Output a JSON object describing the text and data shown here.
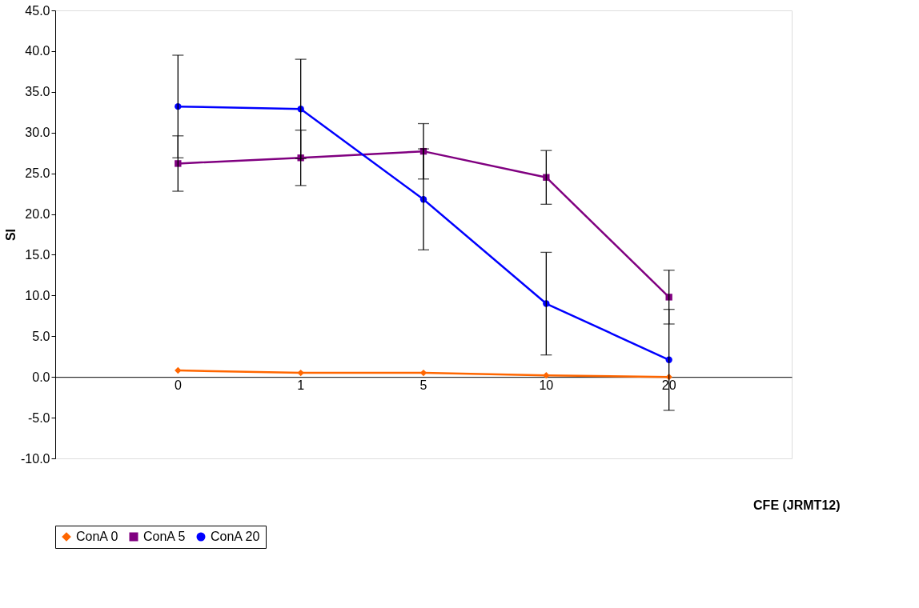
{
  "chart_data": {
    "type": "line",
    "xlabel": "CFE (JRMT12)",
    "ylabel": "SI",
    "categories": [
      "0",
      "1",
      "5",
      "10",
      "20"
    ],
    "series": [
      {
        "name": "ConA 0",
        "color": "#ff6600",
        "marker": "diamond",
        "values": [
          0.8,
          0.5,
          0.5,
          0.2,
          0.0
        ]
      },
      {
        "name": "ConA 5",
        "color": "#800080",
        "marker": "square",
        "values": [
          26.2,
          26.9,
          27.7,
          24.5,
          9.8
        ],
        "errors": [
          3.4,
          3.4,
          3.4,
          3.3,
          3.3
        ]
      },
      {
        "name": "ConA 20",
        "color": "#0000ff",
        "marker": "circle",
        "values": [
          33.2,
          32.9,
          21.8,
          9.0,
          2.1
        ],
        "errors": [
          6.3,
          6.1,
          6.2,
          6.3,
          6.2
        ]
      }
    ],
    "ylim": [
      -10,
      45
    ],
    "yticks": [
      {
        "value": -10,
        "label": "-10.0"
      },
      {
        "value": -5,
        "label": "-5.0"
      },
      {
        "value": 0,
        "label": "0.0"
      },
      {
        "value": 5,
        "label": "5.0"
      },
      {
        "value": 10,
        "label": "10.0"
      },
      {
        "value": 15,
        "label": "15.0"
      },
      {
        "value": 20,
        "label": "20.0"
      },
      {
        "value": 25,
        "label": "25.0"
      },
      {
        "value": 30,
        "label": "30.0"
      },
      {
        "value": 35,
        "label": "35.0"
      },
      {
        "value": 40,
        "label": "40.0"
      },
      {
        "value": 45,
        "label": "45.0"
      }
    ],
    "grid": false,
    "legend": "bottom",
    "line_style": "solid"
  }
}
